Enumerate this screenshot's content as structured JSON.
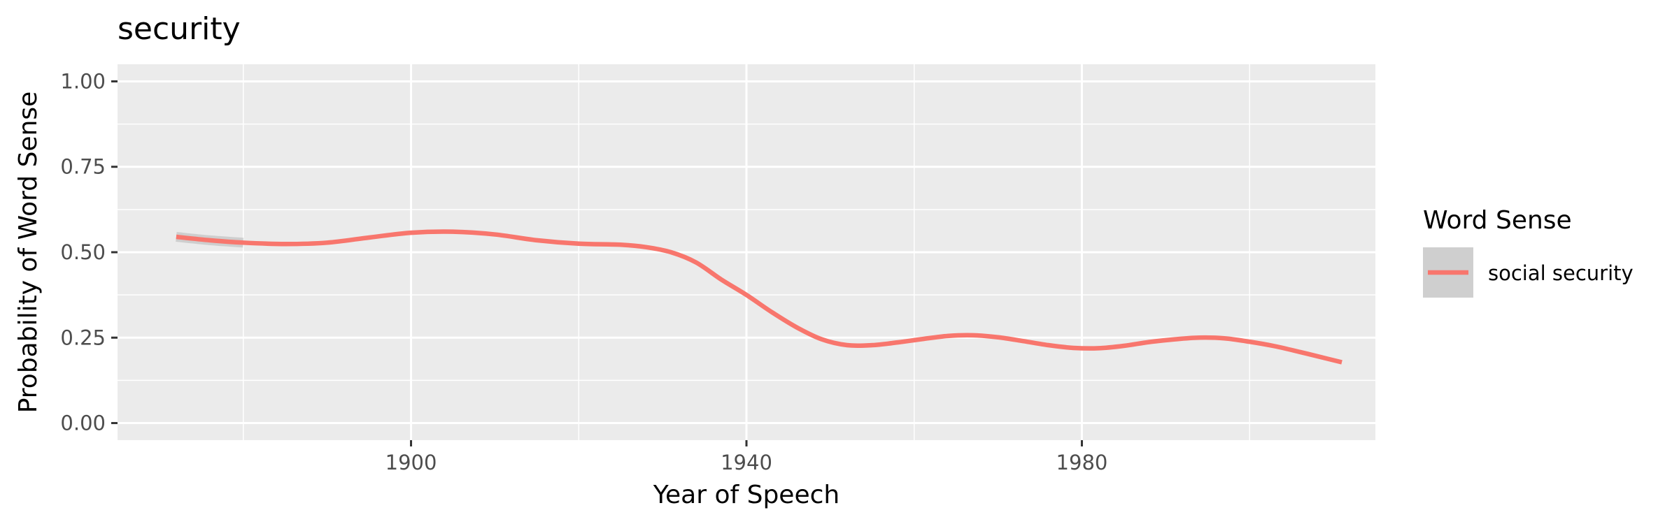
{
  "chart_data": {
    "type": "line",
    "title": "security",
    "xlabel": "Year of Speech",
    "ylabel": "Probability of Word Sense",
    "xlim": [
      1865,
      2015
    ],
    "ylim": [
      -0.05,
      1.05
    ],
    "x_ticks": [
      1900,
      1940,
      1980
    ],
    "x_minor_ticks": [
      1880,
      1920,
      1960,
      2000
    ],
    "y_ticks": [
      0.0,
      0.25,
      0.5,
      0.75,
      1.0
    ],
    "y_tick_labels": [
      "0.00",
      "0.25",
      "0.50",
      "0.75",
      "1.00"
    ],
    "grid": true,
    "legend": {
      "title": "Word Sense",
      "position": "right"
    },
    "series": [
      {
        "name": "social security",
        "color": "#F8766D",
        "x": [
          1872,
          1876,
          1880,
          1885,
          1890,
          1895,
          1900,
          1905,
          1910,
          1915,
          1920,
          1925,
          1928,
          1931,
          1934,
          1937,
          1940,
          1943,
          1946,
          1949,
          1952,
          1955,
          1958,
          1961,
          1964,
          1967,
          1970,
          1973,
          1976,
          1979,
          1982,
          1985,
          1988,
          1991,
          1994,
          1997,
          2000,
          2003,
          2006,
          2009,
          2011
        ],
        "y": [
          0.545,
          0.535,
          0.528,
          0.524,
          0.528,
          0.543,
          0.557,
          0.56,
          0.552,
          0.535,
          0.525,
          0.522,
          0.515,
          0.5,
          0.47,
          0.42,
          0.375,
          0.325,
          0.28,
          0.245,
          0.228,
          0.228,
          0.236,
          0.246,
          0.255,
          0.257,
          0.251,
          0.24,
          0.228,
          0.22,
          0.219,
          0.226,
          0.237,
          0.245,
          0.25,
          0.248,
          0.238,
          0.225,
          0.208,
          0.19,
          0.178
        ]
      }
    ]
  }
}
